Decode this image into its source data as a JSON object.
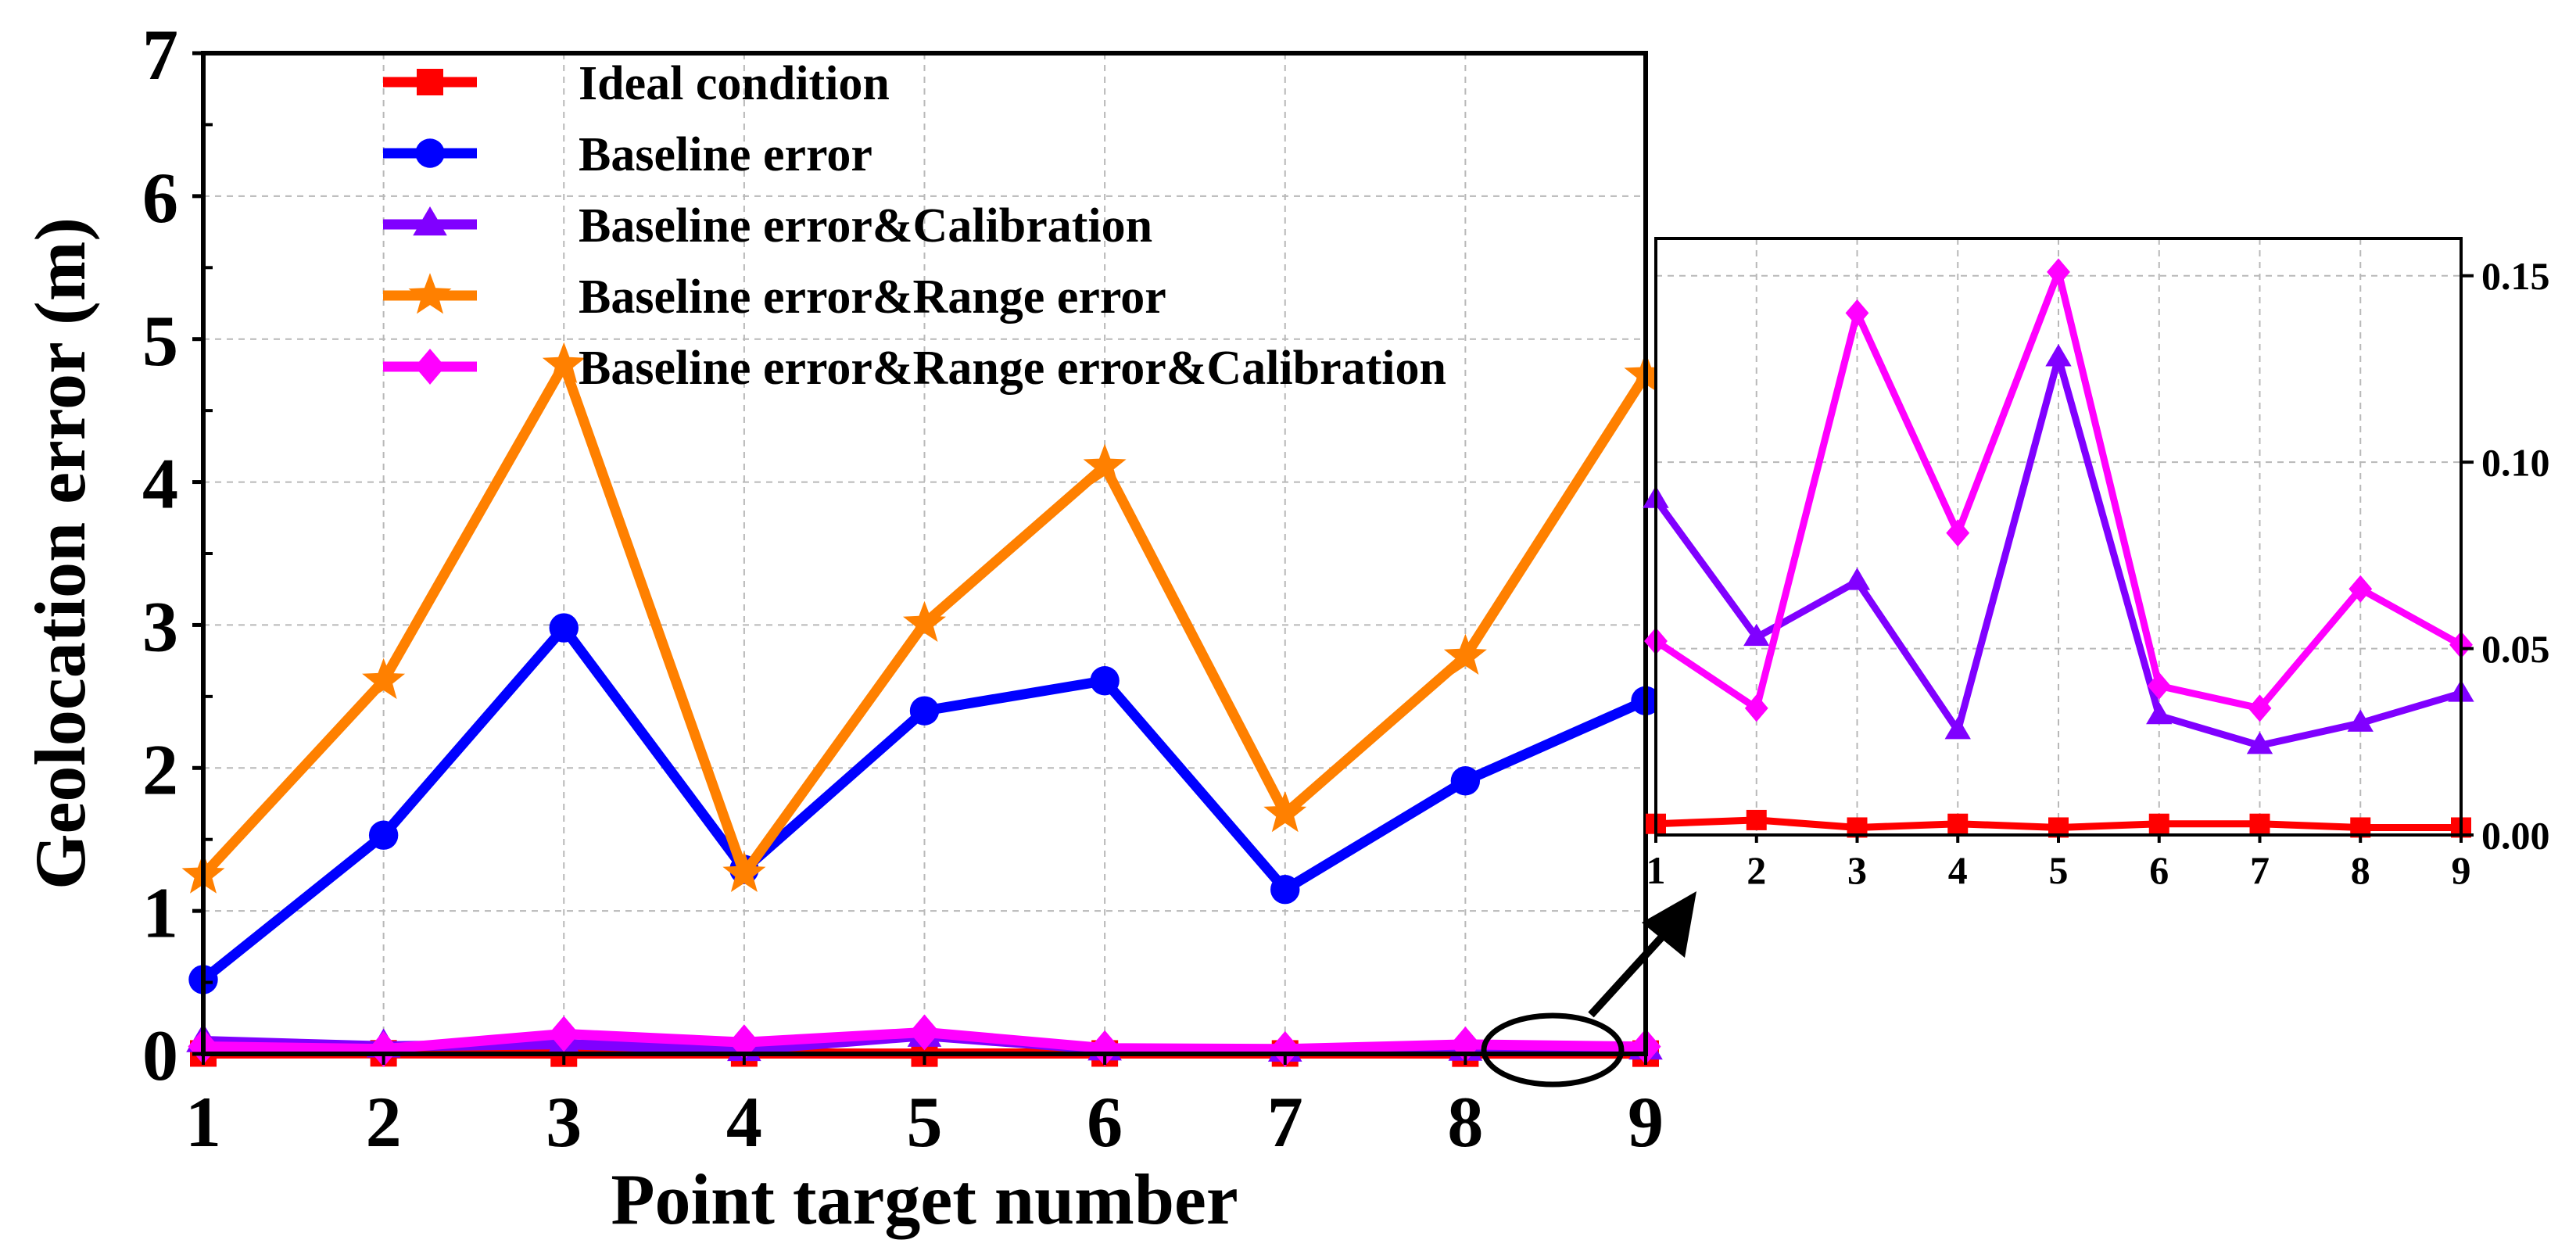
{
  "chart_data": [
    {
      "type": "line",
      "title": "",
      "xlabel": "Point target number",
      "ylabel": "Geolocation error (m)",
      "x": [
        1,
        2,
        3,
        4,
        5,
        6,
        7,
        8,
        9
      ],
      "xlim": [
        1,
        9
      ],
      "ylim": [
        0,
        7
      ],
      "yticks": [
        "0",
        "1",
        "2",
        "3",
        "4",
        "5",
        "6",
        "7"
      ],
      "xticks": [
        "1",
        "2",
        "3",
        "4",
        "5",
        "6",
        "7",
        "8",
        "9"
      ],
      "grid": true,
      "legend_position": "top",
      "series": [
        {
          "name": "Ideal condition",
          "color": "#ff0000",
          "marker": "square",
          "values": [
            0.003,
            0.004,
            0.002,
            0.003,
            0.002,
            0.003,
            0.003,
            0.002,
            0.002
          ]
        },
        {
          "name": "Baseline error",
          "color": "#0000ff",
          "marker": "circle",
          "values": [
            0.52,
            1.53,
            2.98,
            1.29,
            2.4,
            2.61,
            1.15,
            1.91,
            2.47
          ]
        },
        {
          "name": "Baseline error&Calibration",
          "color": "#8000ff",
          "marker": "triangle",
          "values": [
            0.09,
            0.053,
            0.068,
            0.028,
            0.128,
            0.032,
            0.024,
            0.03,
            0.038
          ]
        },
        {
          "name": "Baseline error&Range error",
          "color": "#ff8000",
          "marker": "star",
          "values": [
            1.25,
            2.61,
            4.82,
            1.26,
            3.01,
            4.11,
            1.68,
            2.78,
            4.75
          ]
        },
        {
          "name": "Baseline error&Range error&Calibration",
          "color": "#ff00ff",
          "marker": "diamond",
          "values": [
            0.052,
            0.034,
            0.14,
            0.081,
            0.151,
            0.04,
            0.034,
            0.066,
            0.051
          ]
        }
      ]
    },
    {
      "type": "line",
      "title": "",
      "xlabel": "",
      "ylabel": "",
      "x": [
        1,
        2,
        3,
        4,
        5,
        6,
        7,
        8,
        9
      ],
      "xlim": [
        1,
        9
      ],
      "ylim": [
        0,
        0.16
      ],
      "yticks": [
        "0.00",
        "0.05",
        "0.10",
        "0.15"
      ],
      "xticks": [
        "1",
        "2",
        "3",
        "4",
        "5",
        "6",
        "7",
        "8",
        "9"
      ],
      "grid": true,
      "y_axis_side": "right",
      "series": [
        {
          "color": "#ff0000",
          "marker": "square",
          "values": [
            0.003,
            0.004,
            0.002,
            0.003,
            0.002,
            0.003,
            0.003,
            0.002,
            0.002
          ]
        },
        {
          "color": "#8000ff",
          "marker": "triangle",
          "values": [
            0.09,
            0.053,
            0.068,
            0.028,
            0.128,
            0.032,
            0.024,
            0.03,
            0.038
          ]
        },
        {
          "color": "#ff00ff",
          "marker": "diamond",
          "values": [
            0.052,
            0.034,
            0.14,
            0.081,
            0.151,
            0.04,
            0.034,
            0.066,
            0.051
          ]
        }
      ]
    }
  ]
}
